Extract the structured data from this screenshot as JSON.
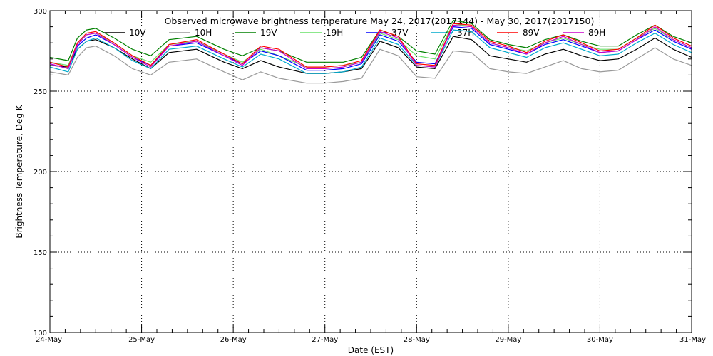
{
  "chart_data": {
    "type": "line",
    "title": "Observed microwave brightness temperature May 24, 2017(2017144) - May 30, 2017(2017150)",
    "xlabel": "Date (EST)",
    "ylabel": "Brightness Temperature, Deg K",
    "ylim": [
      100,
      300
    ],
    "yticks": [
      100,
      150,
      200,
      250,
      300
    ],
    "xlim": [
      0,
      7
    ],
    "xtick_positions": [
      0,
      1,
      2,
      3,
      4,
      5,
      6,
      7
    ],
    "xtick_labels": [
      "24-May",
      "25-May",
      "26-May",
      "27-May",
      "28-May",
      "29-May",
      "30-May",
      "31-May"
    ],
    "grid": "dotted",
    "legend_position": "top",
    "time_days": [
      0.0,
      0.2,
      0.3,
      0.4,
      0.5,
      0.7,
      0.9,
      1.1,
      1.3,
      1.6,
      1.9,
      2.1,
      2.3,
      2.5,
      2.8,
      3.0,
      3.2,
      3.4,
      3.6,
      3.8,
      4.0,
      4.2,
      4.4,
      4.6,
      4.8,
      5.0,
      5.2,
      5.4,
      5.6,
      5.8,
      6.0,
      6.2,
      6.4,
      6.6,
      6.8,
      7.0
    ],
    "series": [
      {
        "name": "10V",
        "color": "#000000",
        "values": [
          266,
          265,
          276,
          281,
          282,
          277,
          270,
          264,
          274,
          276,
          268,
          264,
          269,
          265,
          261,
          261,
          262,
          264,
          281,
          277,
          265,
          264,
          284,
          282,
          272,
          270,
          268,
          273,
          276,
          272,
          269,
          270,
          276,
          283,
          276,
          271
        ]
      },
      {
        "name": "10H",
        "color": "#999999",
        "values": [
          262,
          260,
          271,
          277,
          278,
          272,
          264,
          260,
          268,
          270,
          262,
          257,
          262,
          258,
          255,
          255,
          256,
          258,
          276,
          272,
          259,
          258,
          275,
          274,
          264,
          262,
          261,
          265,
          269,
          264,
          262,
          263,
          270,
          277,
          270,
          266
        ]
      },
      {
        "name": "19V",
        "color": "#008000",
        "values": [
          271,
          269,
          283,
          288,
          289,
          283,
          276,
          272,
          282,
          284,
          276,
          272,
          277,
          275,
          268,
          268,
          268,
          271,
          288,
          284,
          275,
          273,
          294,
          292,
          282,
          279,
          277,
          282,
          285,
          281,
          278,
          278,
          285,
          291,
          284,
          280
        ]
      },
      {
        "name": "19H",
        "color": "#66e066",
        "values": [
          268,
          266,
          280,
          285,
          286,
          280,
          272,
          268,
          279,
          281,
          273,
          268,
          276,
          272,
          265,
          265,
          266,
          268,
          286,
          282,
          272,
          270,
          292,
          290,
          280,
          277,
          275,
          280,
          283,
          279,
          276,
          276,
          283,
          289,
          282,
          277
        ]
      },
      {
        "name": "37V",
        "color": "#0000ff",
        "values": [
          267,
          264,
          278,
          283,
          285,
          279,
          271,
          266,
          278,
          280,
          272,
          267,
          275,
          272,
          263,
          263,
          264,
          267,
          285,
          281,
          268,
          267,
          290,
          289,
          279,
          276,
          273,
          279,
          282,
          278,
          274,
          275,
          282,
          288,
          281,
          276
        ]
      },
      {
        "name": "37H",
        "color": "#00aacc",
        "values": [
          265,
          262,
          276,
          281,
          283,
          277,
          269,
          264,
          276,
          278,
          270,
          265,
          273,
          270,
          261,
          261,
          262,
          265,
          283,
          279,
          266,
          265,
          288,
          287,
          277,
          274,
          271,
          277,
          280,
          276,
          272,
          273,
          280,
          286,
          279,
          274
        ]
      },
      {
        "name": "89V",
        "color": "#ff0000",
        "values": [
          268,
          265,
          280,
          286,
          287,
          280,
          272,
          266,
          279,
          282,
          273,
          267,
          278,
          276,
          265,
          265,
          266,
          269,
          288,
          284,
          267,
          266,
          292,
          291,
          281,
          278,
          274,
          281,
          285,
          280,
          275,
          276,
          283,
          291,
          283,
          278
        ]
      },
      {
        "name": "89H",
        "color": "#cc00cc",
        "values": [
          267,
          264,
          279,
          285,
          286,
          279,
          271,
          265,
          278,
          281,
          272,
          266,
          277,
          275,
          264,
          264,
          265,
          268,
          287,
          283,
          266,
          265,
          291,
          290,
          280,
          277,
          273,
          280,
          284,
          279,
          274,
          275,
          282,
          290,
          282,
          277
        ]
      }
    ]
  }
}
